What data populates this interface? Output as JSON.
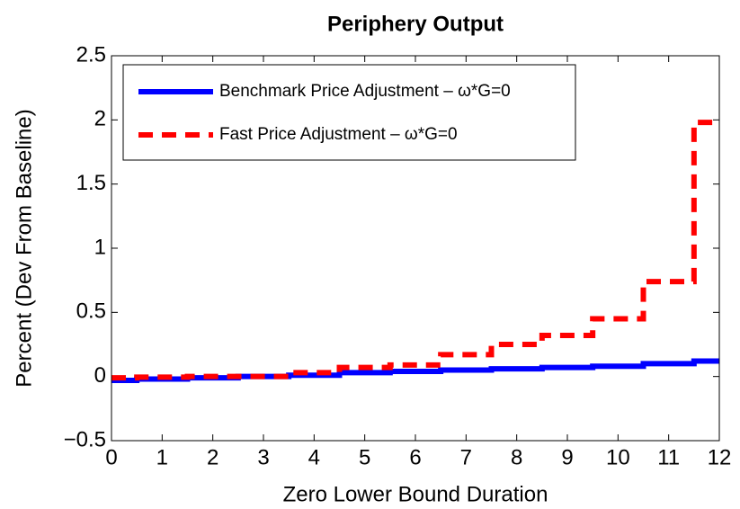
{
  "chart_data": {
    "type": "line",
    "title": "Periphery Output",
    "x_label": "Zero Lower Bound Duration",
    "y_label": "Percent (Dev From Baseline)",
    "x": [
      0,
      0.5,
      0.5,
      1.5,
      1.5,
      2.5,
      2.5,
      3.5,
      3.5,
      4.5,
      4.5,
      5.5,
      5.5,
      6.5,
      6.5,
      7.5,
      7.5,
      8.5,
      8.5,
      9.5,
      9.5,
      10.5,
      10.5,
      11.5,
      11.5,
      12
    ],
    "series": [
      {
        "name": "Benchmark Price Adjustment – ω*G=0",
        "color": "#0000ff",
        "dash": "solid",
        "values": [
          -0.03,
          -0.03,
          -0.02,
          -0.02,
          -0.01,
          -0.01,
          0,
          0,
          0.01,
          0.01,
          0.03,
          0.03,
          0.04,
          0.04,
          0.05,
          0.05,
          0.06,
          0.06,
          0.07,
          0.07,
          0.08,
          0.08,
          0.1,
          0.1,
          0.12,
          0.12
        ]
      },
      {
        "name": "Fast Price Adjustment – ω*G=0",
        "color": "#ff0000",
        "dash": "dashed",
        "values": [
          -0.01,
          -0.01,
          -0.005,
          -0.005,
          0,
          0,
          0,
          0,
          0.03,
          0.03,
          0.07,
          0.07,
          0.09,
          0.09,
          0.17,
          0.17,
          0.25,
          0.25,
          0.32,
          0.32,
          0.45,
          0.45,
          0.74,
          0.74,
          1.98,
          1.98
        ]
      }
    ],
    "xlim": [
      0,
      12
    ],
    "xticks": [
      0,
      1,
      2,
      3,
      4,
      5,
      6,
      7,
      8,
      9,
      10,
      11,
      12
    ],
    "ylim": [
      -0.5,
      2.5
    ],
    "yticks": [
      {
        "value": -0.5,
        "label": "−0.5"
      },
      0,
      0.5,
      1,
      1.5,
      2,
      2.5
    ],
    "grid": false,
    "legend": "upper left"
  }
}
